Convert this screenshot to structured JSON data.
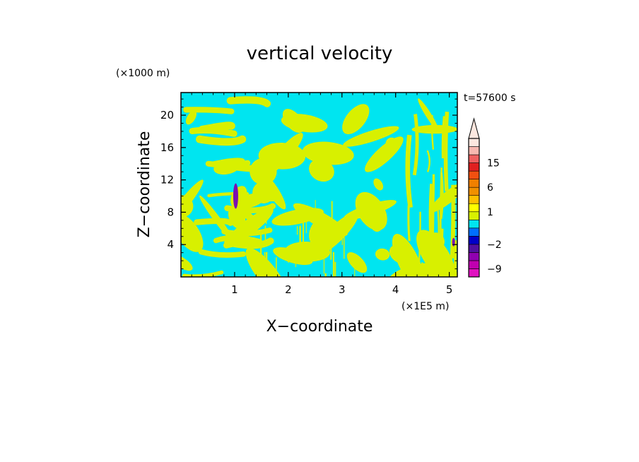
{
  "chart_data": {
    "type": "heatmap",
    "title": "vertical velocity",
    "time_label": "t=57600 s",
    "xlabel": "X−coordinate",
    "ylabel": "Z−coordinate",
    "x_unit": "(×1E5 m)",
    "y_unit": "(×1000 m)",
    "xlim": [
      0,
      5.15
    ],
    "ylim": [
      0,
      22.8
    ],
    "x_ticks": [
      1,
      2,
      3,
      4,
      5
    ],
    "x_tick_labels": [
      "1",
      "2",
      "3",
      "4",
      "5"
    ],
    "y_ticks": [
      4,
      8,
      12,
      16,
      20
    ],
    "y_tick_labels": [
      "4",
      "8",
      "12",
      "16",
      "20"
    ],
    "dominant_levels": {
      "background": "#00e5f0",
      "positive": "#d8f000",
      "negative_extreme": "#7a10b0"
    },
    "colorbar": {
      "labels": [
        "15",
        "6",
        "1",
        "−2",
        "−9"
      ],
      "label_values": [
        15,
        6,
        1,
        -2,
        -9
      ],
      "levels": [
        {
          "value": -12,
          "color": "#e010c0"
        },
        {
          "value": -9,
          "color": "#c000b0"
        },
        {
          "value": -6,
          "color": "#9000b0"
        },
        {
          "value": -4,
          "color": "#5010a0"
        },
        {
          "value": -2,
          "color": "#0000c8"
        },
        {
          "value": -1,
          "color": "#0070ff"
        },
        {
          "value": 0,
          "color": "#00e5f0"
        },
        {
          "value": 0.5,
          "color": "#d8f000"
        },
        {
          "value": 1,
          "color": "#ffff00"
        },
        {
          "value": 2,
          "color": "#ffc000"
        },
        {
          "value": 4,
          "color": "#f09000"
        },
        {
          "value": 6,
          "color": "#f08000"
        },
        {
          "value": 8,
          "color": "#f05010"
        },
        {
          "value": 11,
          "color": "#e02020"
        },
        {
          "value": 15,
          "color": "#f06060"
        },
        {
          "value": 20,
          "color": "#f8b8b0"
        },
        {
          "value": 25,
          "color": "#fde8e0"
        }
      ]
    }
  }
}
